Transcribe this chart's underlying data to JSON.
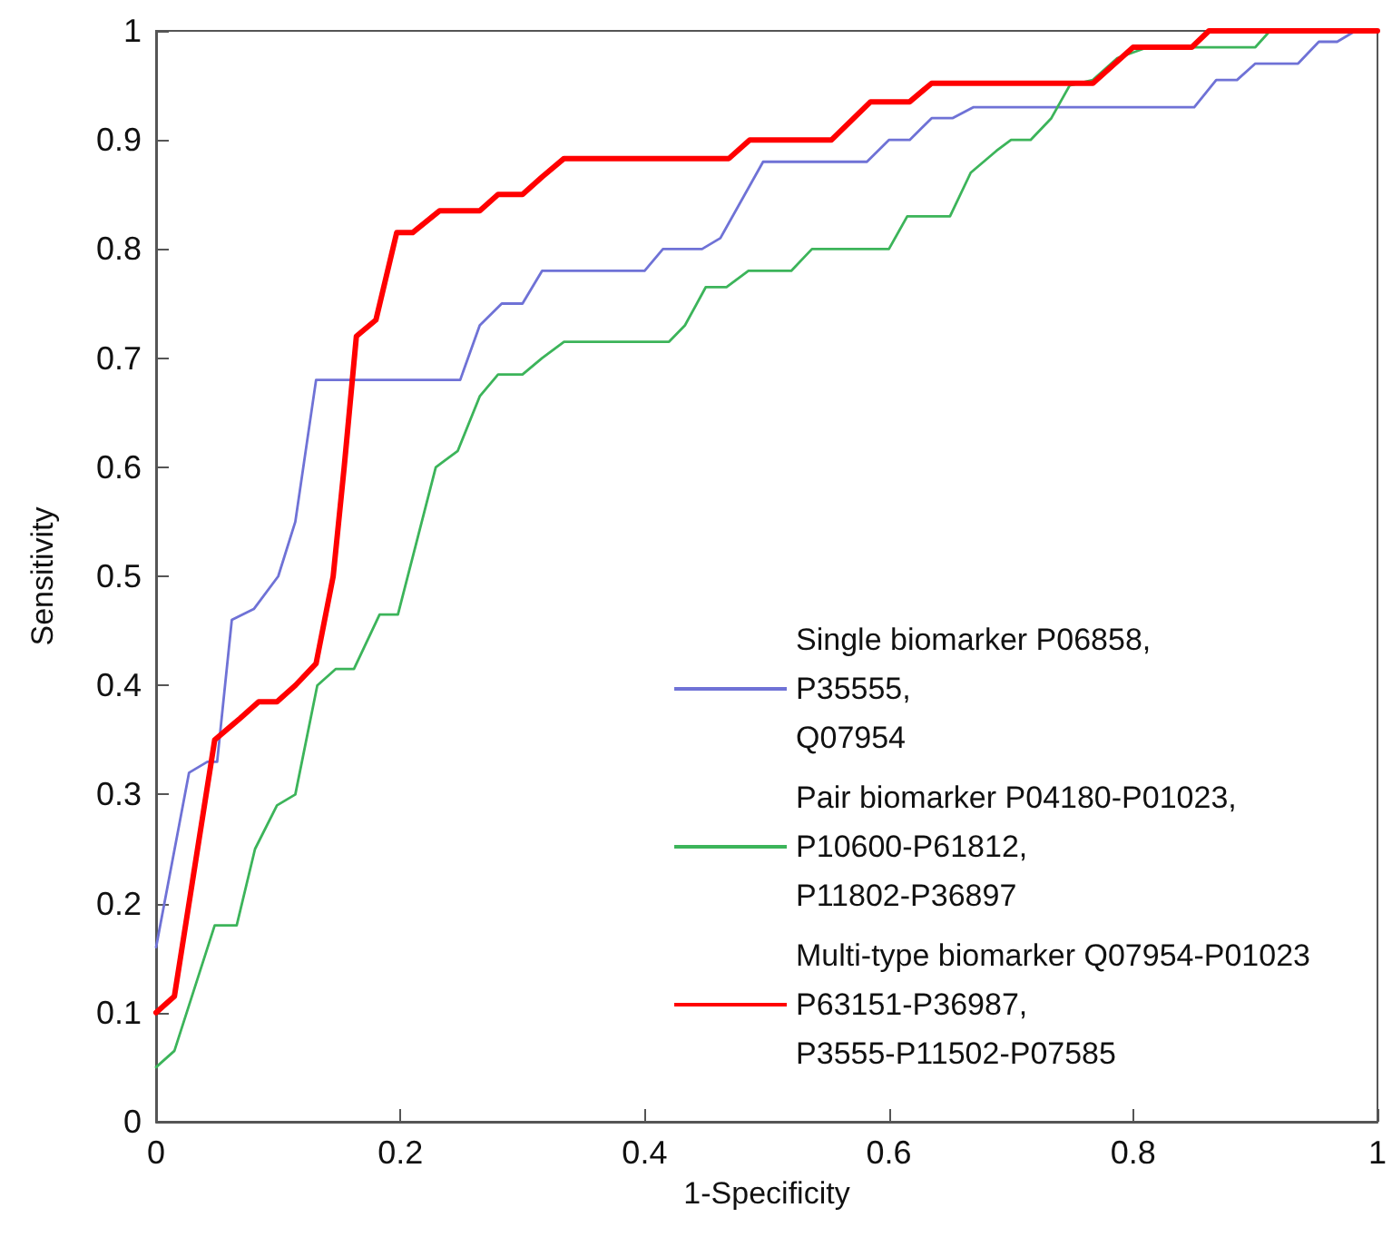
{
  "chart_data": {
    "type": "line",
    "xlabel": "1-Specificity",
    "ylabel": "Sensitivity",
    "xlim": [
      0,
      1
    ],
    "xticks": [
      0,
      0.2,
      0.4,
      0.6,
      0.8,
      1
    ],
    "ylim": [
      0,
      1
    ],
    "yticks": [
      0,
      0.1,
      0.2,
      0.3,
      0.4,
      0.5,
      0.6,
      0.7,
      0.8,
      0.9,
      1
    ],
    "grid": false,
    "legend": "bottom right",
    "marker": "none",
    "line_style": "solid",
    "series": [
      {
        "name": "Single biomarker P06858,\nP35555,\nQ07954",
        "color": "#6f72d6",
        "x": [
          0,
          0.027,
          0.042,
          0.05,
          0.062,
          0.08,
          0.1,
          0.114,
          0.131,
          0.249,
          0.265,
          0.283,
          0.3,
          0.316,
          0.4,
          0.415,
          0.447,
          0.462,
          0.497,
          0.582,
          0.6,
          0.617,
          0.635,
          0.652,
          0.669,
          0.85,
          0.868,
          0.885,
          0.9,
          0.935,
          0.952,
          0.967,
          0.982
        ],
        "values": [
          0.16,
          0.32,
          0.33,
          0.33,
          0.46,
          0.47,
          0.5,
          0.55,
          0.68,
          0.68,
          0.73,
          0.75,
          0.75,
          0.78,
          0.78,
          0.8,
          0.8,
          0.81,
          0.88,
          0.88,
          0.9,
          0.9,
          0.92,
          0.92,
          0.93,
          0.93,
          0.955,
          0.955,
          0.97,
          0.97,
          0.99,
          0.99,
          1
        ]
      },
      {
        "name": "Pair biomarker P04180-P01023,\nP10600-P61812,\nP11802-P36897",
        "color": "#3cb45a",
        "x": [
          0,
          0.015,
          0.048,
          0.066,
          0.081,
          0.099,
          0.114,
          0.132,
          0.147,
          0.162,
          0.183,
          0.198,
          0.229,
          0.247,
          0.265,
          0.28,
          0.3,
          0.316,
          0.334,
          0.42,
          0.433,
          0.45,
          0.467,
          0.485,
          0.52,
          0.537,
          0.6,
          0.615,
          0.65,
          0.667,
          0.688,
          0.7,
          0.716,
          0.733,
          0.748,
          0.767,
          0.787,
          0.812,
          0.9,
          0.912,
          1
        ],
        "values": [
          0.05,
          0.065,
          0.18,
          0.18,
          0.25,
          0.29,
          0.3,
          0.4,
          0.415,
          0.415,
          0.465,
          0.465,
          0.6,
          0.615,
          0.665,
          0.685,
          0.685,
          0.7,
          0.715,
          0.715,
          0.73,
          0.765,
          0.765,
          0.78,
          0.78,
          0.8,
          0.8,
          0.83,
          0.83,
          0.87,
          0.89,
          0.9,
          0.9,
          0.92,
          0.95,
          0.955,
          0.975,
          0.985,
          0.985,
          1,
          1
        ]
      },
      {
        "name": "Multi-type biomarker Q07954-P01023\nP63151-P36987,\nP3555-P11502-P07585",
        "color": "#ff0000",
        "x": [
          0,
          0.015,
          0.048,
          0.069,
          0.084,
          0.099,
          0.114,
          0.131,
          0.145,
          0.154,
          0.164,
          0.18,
          0.197,
          0.21,
          0.232,
          0.265,
          0.28,
          0.3,
          0.316,
          0.334,
          0.469,
          0.486,
          0.553,
          0.585,
          0.617,
          0.635,
          0.767,
          0.8,
          0.848,
          0.862,
          1
        ],
        "values": [
          0.1,
          0.115,
          0.35,
          0.37,
          0.385,
          0.385,
          0.4,
          0.42,
          0.5,
          0.6,
          0.72,
          0.735,
          0.815,
          0.815,
          0.835,
          0.835,
          0.85,
          0.85,
          0.866,
          0.883,
          0.883,
          0.9,
          0.9,
          0.935,
          0.935,
          0.952,
          0.952,
          0.985,
          0.985,
          1,
          1
        ]
      }
    ]
  }
}
